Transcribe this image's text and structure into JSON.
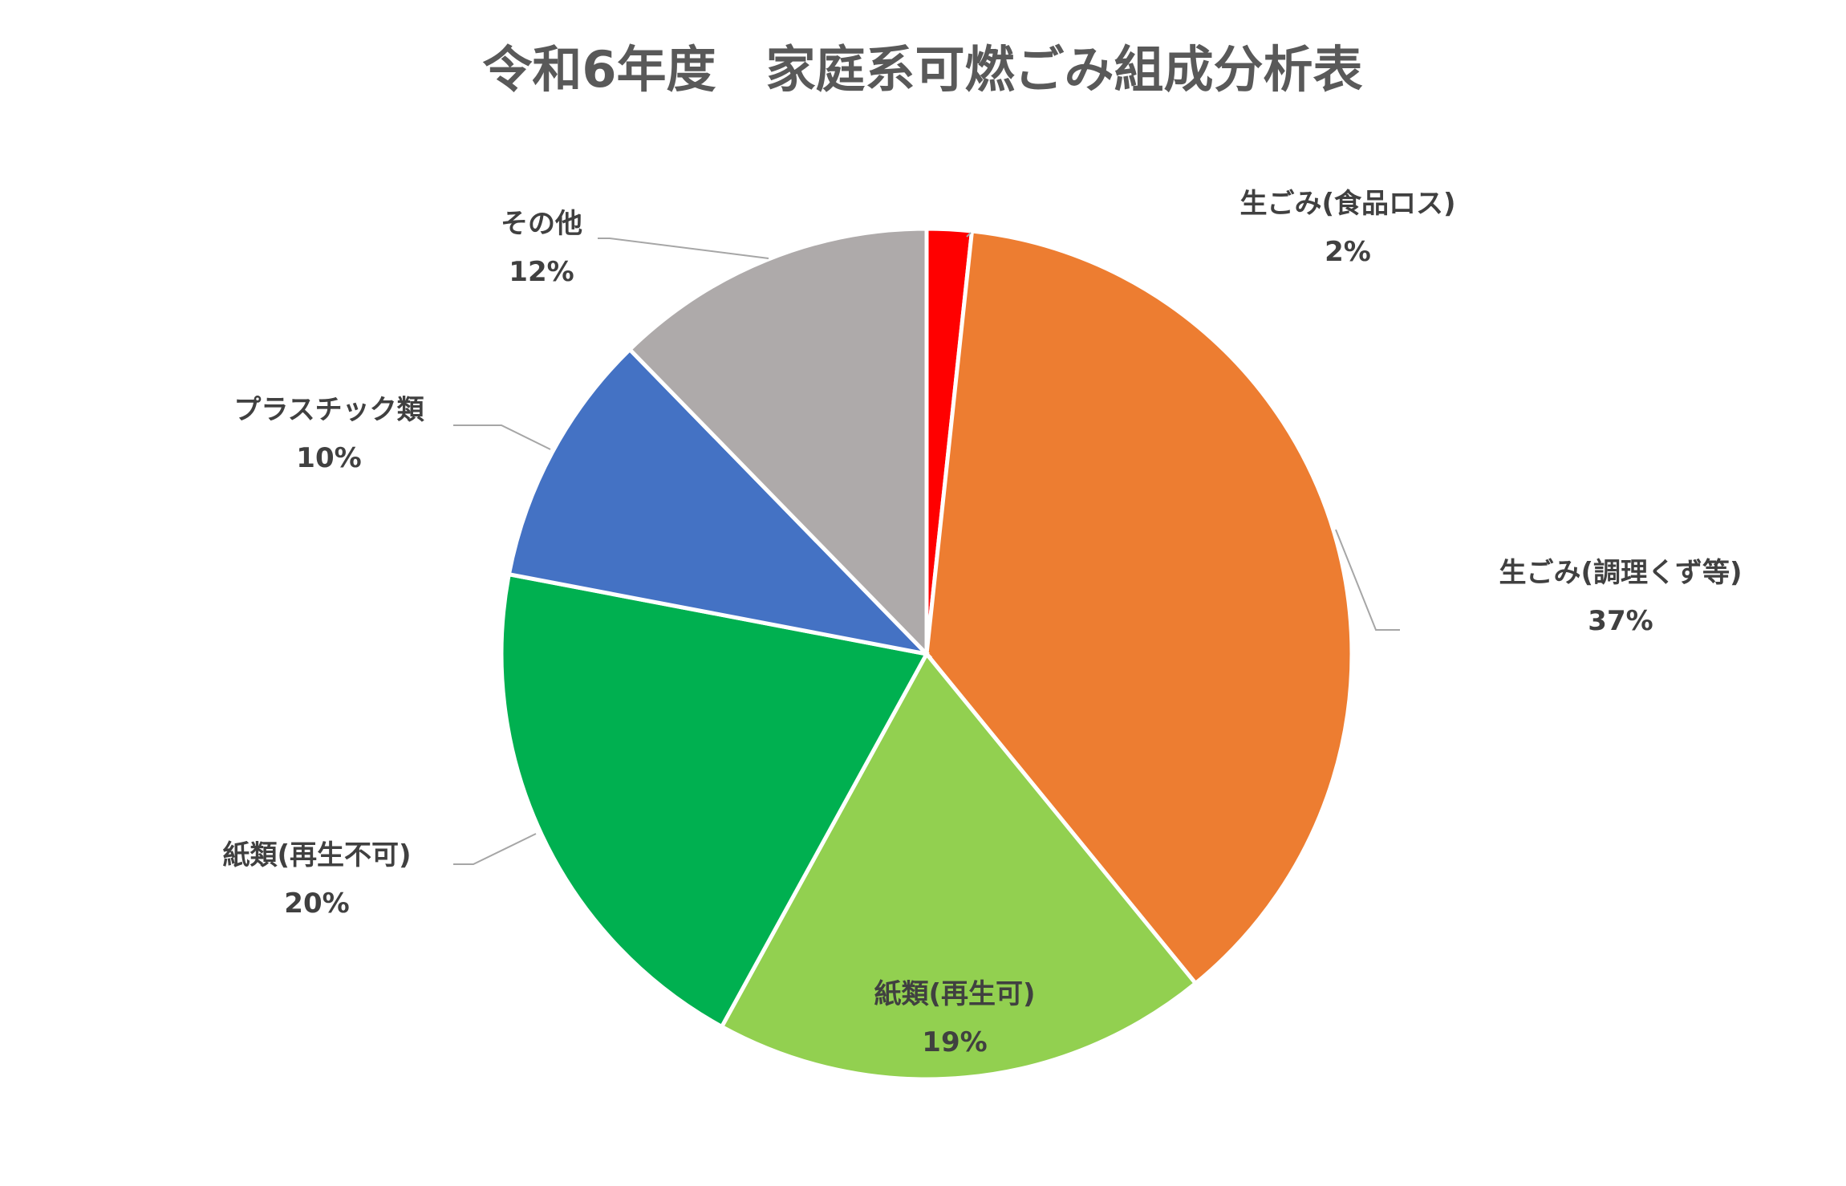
{
  "chart_data": {
    "type": "pie",
    "title": "令和6年度　家庭系可燃ごみ組成分析表",
    "categories": [
      "生ごみ(食品ロス)",
      "生ごみ(調理くず等)",
      "紙類(再生可)",
      "紙類(再生不可)",
      "プラスチック類",
      "その他"
    ],
    "values": [
      1.7,
      37.4,
      18.9,
      20.0,
      9.7,
      12.3
    ],
    "percent_labels": [
      "2%",
      "37%",
      "19%",
      "20%",
      "10%",
      "12%"
    ],
    "colors": [
      "#ff0000",
      "#ed7d31",
      "#92d050",
      "#00b050",
      "#4472c4",
      "#aeaaaa"
    ],
    "start": "12 o'clock",
    "direction": "clockwise",
    "legend": "none",
    "label_position": "outside with leader lines"
  }
}
